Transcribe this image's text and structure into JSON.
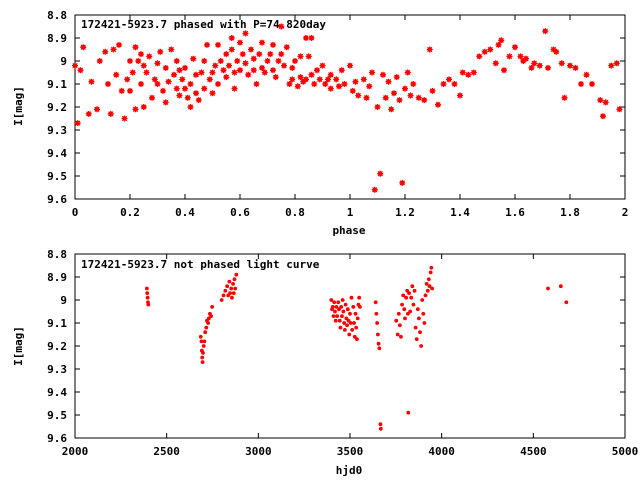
{
  "colors": {
    "points": "#ff0000",
    "frame": "#000000",
    "background": "#ffffff"
  },
  "chart_data": [
    {
      "type": "scatter",
      "title": "172421-5923.7 phased with P=74.820day",
      "xlabel": "phase",
      "ylabel": "I[mag]",
      "xlim": [
        0,
        2
      ],
      "ylim": [
        9.6,
        8.8
      ],
      "y_inverted": true,
      "grid": false,
      "marker": "star",
      "x_ticks": [
        "0",
        "0.2",
        "0.4",
        "0.6",
        "0.8",
        "1",
        "1.2",
        "1.4",
        "1.6",
        "1.8",
        "2"
      ],
      "y_ticks": [
        "8.8",
        "8.9",
        "9",
        "9.1",
        "9.2",
        "9.3",
        "9.4",
        "9.5",
        "9.6"
      ],
      "points": [
        [
          0.0,
          9.02
        ],
        [
          0.01,
          9.27
        ],
        [
          0.02,
          9.04
        ],
        [
          0.03,
          8.94
        ],
        [
          0.05,
          9.23
        ],
        [
          0.06,
          9.09
        ],
        [
          0.08,
          9.21
        ],
        [
          0.09,
          9.0
        ],
        [
          0.11,
          8.96
        ],
        [
          0.12,
          9.1
        ],
        [
          0.13,
          9.23
        ],
        [
          0.14,
          8.95
        ],
        [
          0.15,
          9.06
        ],
        [
          0.16,
          8.93
        ],
        [
          0.17,
          9.13
        ],
        [
          0.18,
          9.25
        ],
        [
          0.19,
          9.08
        ],
        [
          0.2,
          9.0
        ],
        [
          0.2,
          9.13
        ],
        [
          0.21,
          9.05
        ],
        [
          0.22,
          8.94
        ],
        [
          0.22,
          9.21
        ],
        [
          0.23,
          9.0
        ],
        [
          0.24,
          9.1
        ],
        [
          0.24,
          8.97
        ],
        [
          0.25,
          9.02
        ],
        [
          0.25,
          9.2
        ],
        [
          0.26,
          9.05
        ],
        [
          0.27,
          8.98
        ],
        [
          0.28,
          9.16
        ],
        [
          0.29,
          9.08
        ],
        [
          0.3,
          9.01
        ],
        [
          0.3,
          9.1
        ],
        [
          0.31,
          8.96
        ],
        [
          0.32,
          9.13
        ],
        [
          0.33,
          9.03
        ],
        [
          0.33,
          9.18
        ],
        [
          0.34,
          9.09
        ],
        [
          0.35,
          8.95
        ],
        [
          0.36,
          9.06
        ],
        [
          0.37,
          9.12
        ],
        [
          0.37,
          9.0
        ],
        [
          0.38,
          9.04
        ],
        [
          0.38,
          9.15
        ],
        [
          0.39,
          9.08
        ],
        [
          0.4,
          9.12
        ],
        [
          0.4,
          9.03
        ],
        [
          0.41,
          9.16
        ],
        [
          0.42,
          9.1
        ],
        [
          0.42,
          9.2
        ],
        [
          0.43,
          8.99
        ],
        [
          0.44,
          9.06
        ],
        [
          0.44,
          9.14
        ],
        [
          0.45,
          9.17
        ],
        [
          0.46,
          9.05
        ],
        [
          0.47,
          9.12
        ],
        [
          0.47,
          9.0
        ],
        [
          0.48,
          8.93
        ],
        [
          0.49,
          9.08
        ],
        [
          0.5,
          9.14
        ],
        [
          0.5,
          9.05
        ],
        [
          0.51,
          9.02
        ],
        [
          0.52,
          8.93
        ],
        [
          0.52,
          9.1
        ],
        [
          0.53,
          9.0
        ],
        [
          0.54,
          9.04
        ],
        [
          0.55,
          9.07
        ],
        [
          0.55,
          8.97
        ],
        [
          0.56,
          9.02
        ],
        [
          0.57,
          8.9
        ],
        [
          0.57,
          8.95
        ],
        [
          0.58,
          9.05
        ],
        [
          0.58,
          9.12
        ],
        [
          0.59,
          9.0
        ],
        [
          0.6,
          8.92
        ],
        [
          0.6,
          9.04
        ],
        [
          0.61,
          8.97
        ],
        [
          0.62,
          8.88
        ],
        [
          0.62,
          9.01
        ],
        [
          0.63,
          9.06
        ],
        [
          0.64,
          8.95
        ],
        [
          0.65,
          9.04
        ],
        [
          0.65,
          8.99
        ],
        [
          0.66,
          9.1
        ],
        [
          0.67,
          8.97
        ],
        [
          0.68,
          9.03
        ],
        [
          0.68,
          8.92
        ],
        [
          0.69,
          9.05
        ],
        [
          0.7,
          9.0
        ],
        [
          0.71,
          8.97
        ],
        [
          0.72,
          9.04
        ],
        [
          0.72,
          8.93
        ],
        [
          0.73,
          9.07
        ],
        [
          0.74,
          9.0
        ],
        [
          0.75,
          8.85
        ],
        [
          0.75,
          8.97
        ],
        [
          0.76,
          9.02
        ],
        [
          0.77,
          8.94
        ],
        [
          0.78,
          9.1
        ],
        [
          0.79,
          9.03
        ],
        [
          0.79,
          9.08
        ],
        [
          0.8,
          9.0
        ],
        [
          0.81,
          9.11
        ],
        [
          0.82,
          9.07
        ],
        [
          0.82,
          8.98
        ],
        [
          0.83,
          9.09
        ],
        [
          0.84,
          8.9
        ],
        [
          0.84,
          9.08
        ],
        [
          0.85,
          8.98
        ],
        [
          0.86,
          9.06
        ],
        [
          0.86,
          8.9
        ],
        [
          0.87,
          9.1
        ],
        [
          0.88,
          9.04
        ],
        [
          0.89,
          9.08
        ],
        [
          0.9,
          9.02
        ],
        [
          0.91,
          9.1
        ],
        [
          0.92,
          9.08
        ],
        [
          0.93,
          9.12
        ],
        [
          0.93,
          9.06
        ],
        [
          0.95,
          9.08
        ],
        [
          0.96,
          9.11
        ],
        [
          0.97,
          9.04
        ],
        [
          0.98,
          9.1
        ],
        [
          1.0,
          9.02
        ],
        [
          1.01,
          9.13
        ],
        [
          1.02,
          9.09
        ],
        [
          1.03,
          9.15
        ],
        [
          1.05,
          9.08
        ],
        [
          1.06,
          9.16
        ],
        [
          1.07,
          9.11
        ],
        [
          1.08,
          9.05
        ],
        [
          1.09,
          9.56
        ],
        [
          1.1,
          9.2
        ],
        [
          1.11,
          9.49
        ],
        [
          1.12,
          9.06
        ],
        [
          1.13,
          9.16
        ],
        [
          1.14,
          9.09
        ],
        [
          1.15,
          9.21
        ],
        [
          1.16,
          9.14
        ],
        [
          1.17,
          9.07
        ],
        [
          1.18,
          9.17
        ],
        [
          1.19,
          9.53
        ],
        [
          1.2,
          9.12
        ],
        [
          1.21,
          9.05
        ],
        [
          1.22,
          9.15
        ],
        [
          1.23,
          9.1
        ],
        [
          1.25,
          9.16
        ],
        [
          1.27,
          9.17
        ],
        [
          1.29,
          8.95
        ],
        [
          1.3,
          9.13
        ],
        [
          1.32,
          9.19
        ],
        [
          1.34,
          9.1
        ],
        [
          1.36,
          9.08
        ],
        [
          1.38,
          9.1
        ],
        [
          1.4,
          9.15
        ],
        [
          1.41,
          9.05
        ],
        [
          1.43,
          9.06
        ],
        [
          1.45,
          9.05
        ],
        [
          1.47,
          8.98
        ],
        [
          1.49,
          8.96
        ],
        [
          1.51,
          8.95
        ],
        [
          1.53,
          9.01
        ],
        [
          1.54,
          8.93
        ],
        [
          1.55,
          8.91
        ],
        [
          1.56,
          9.04
        ],
        [
          1.58,
          8.98
        ],
        [
          1.6,
          8.94
        ],
        [
          1.62,
          8.98
        ],
        [
          1.63,
          9.0
        ],
        [
          1.64,
          8.99
        ],
        [
          1.66,
          9.03
        ],
        [
          1.67,
          9.01
        ],
        [
          1.69,
          9.02
        ],
        [
          1.71,
          8.87
        ],
        [
          1.72,
          9.03
        ],
        [
          1.74,
          8.95
        ],
        [
          1.75,
          8.96
        ],
        [
          1.77,
          9.01
        ],
        [
          1.78,
          9.16
        ],
        [
          1.8,
          9.02
        ],
        [
          1.82,
          9.03
        ],
        [
          1.84,
          9.1
        ],
        [
          1.86,
          9.06
        ],
        [
          1.88,
          9.1
        ],
        [
          1.91,
          9.17
        ],
        [
          1.92,
          9.24
        ],
        [
          1.93,
          9.18
        ],
        [
          1.95,
          9.02
        ],
        [
          1.97,
          9.01
        ],
        [
          1.98,
          9.21
        ]
      ]
    },
    {
      "type": "scatter",
      "title": "172421-5923.7 not phased light curve",
      "xlabel": "hjd0",
      "ylabel": "I[mag]",
      "xlim": [
        2000,
        5000
      ],
      "ylim": [
        9.6,
        8.8
      ],
      "y_inverted": true,
      "grid": false,
      "marker": "dot",
      "x_ticks": [
        "2000",
        "2500",
        "3000",
        "3500",
        "4000",
        "4500",
        "5000"
      ],
      "y_ticks": [
        "8.8",
        "8.9",
        "9",
        "9.1",
        "9.2",
        "9.3",
        "9.4",
        "9.5",
        "9.6"
      ],
      "points": [
        [
          2392,
          8.95
        ],
        [
          2394,
          8.97
        ],
        [
          2396,
          8.99
        ],
        [
          2398,
          9.01
        ],
        [
          2400,
          9.02
        ],
        [
          2686,
          9.16
        ],
        [
          2690,
          9.18
        ],
        [
          2692,
          9.22
        ],
        [
          2694,
          9.25
        ],
        [
          2696,
          9.27
        ],
        [
          2698,
          9.23
        ],
        [
          2702,
          9.2
        ],
        [
          2706,
          9.18
        ],
        [
          2710,
          9.14
        ],
        [
          2716,
          9.12
        ],
        [
          2720,
          9.09
        ],
        [
          2726,
          9.1
        ],
        [
          2730,
          9.08
        ],
        [
          2736,
          9.06
        ],
        [
          2742,
          9.07
        ],
        [
          2748,
          9.03
        ],
        [
          2800,
          9.0
        ],
        [
          2810,
          8.98
        ],
        [
          2820,
          8.96
        ],
        [
          2830,
          8.94
        ],
        [
          2836,
          8.98
        ],
        [
          2842,
          8.92
        ],
        [
          2846,
          8.97
        ],
        [
          2852,
          8.95
        ],
        [
          2856,
          8.99
        ],
        [
          2862,
          8.93
        ],
        [
          2866,
          8.97
        ],
        [
          2870,
          8.91
        ],
        [
          2874,
          8.95
        ],
        [
          2880,
          8.89
        ],
        [
          3398,
          9.0
        ],
        [
          3402,
          9.04
        ],
        [
          3406,
          9.03
        ],
        [
          3410,
          9.07
        ],
        [
          3414,
          9.01
        ],
        [
          3418,
          9.05
        ],
        [
          3422,
          9.09
        ],
        [
          3426,
          9.03
        ],
        [
          3430,
          9.07
        ],
        [
          3436,
          9.01
        ],
        [
          3440,
          9.04
        ],
        [
          3444,
          9.09
        ],
        [
          3448,
          9.12
        ],
        [
          3452,
          9.03
        ],
        [
          3456,
          9.07
        ],
        [
          3460,
          9.0
        ],
        [
          3464,
          9.05
        ],
        [
          3468,
          9.1
        ],
        [
          3472,
          9.13
        ],
        [
          3476,
          9.02
        ],
        [
          3480,
          9.08
        ],
        [
          3484,
          9.11
        ],
        [
          3488,
          9.04
        ],
        [
          3492,
          9.09
        ],
        [
          3496,
          9.15
        ],
        [
          3500,
          9.06
        ],
        [
          3504,
          9.1
        ],
        [
          3508,
          8.99
        ],
        [
          3512,
          9.13
        ],
        [
          3518,
          9.03
        ],
        [
          3522,
          9.1
        ],
        [
          3526,
          9.16
        ],
        [
          3530,
          9.06
        ],
        [
          3534,
          9.12
        ],
        [
          3538,
          9.17
        ],
        [
          3542,
          9.08
        ],
        [
          3546,
          9.02
        ],
        [
          3550,
          8.99
        ],
        [
          3554,
          9.03
        ],
        [
          3640,
          9.01
        ],
        [
          3644,
          9.06
        ],
        [
          3648,
          9.1
        ],
        [
          3652,
          9.15
        ],
        [
          3656,
          9.19
        ],
        [
          3660,
          9.21
        ],
        [
          3666,
          9.54
        ],
        [
          3668,
          9.56
        ],
        [
          3752,
          9.09
        ],
        [
          3760,
          9.15
        ],
        [
          3766,
          9.06
        ],
        [
          3772,
          9.11
        ],
        [
          3778,
          9.16
        ],
        [
          3784,
          9.02
        ],
        [
          3790,
          8.98
        ],
        [
          3796,
          9.04
        ],
        [
          3800,
          9.08
        ],
        [
          3806,
          8.99
        ],
        [
          3812,
          8.96
        ],
        [
          3816,
          9.06
        ],
        [
          3818,
          9.49
        ],
        [
          3822,
          8.97
        ],
        [
          3828,
          9.05
        ],
        [
          3834,
          8.99
        ],
        [
          3840,
          8.94
        ],
        [
          3846,
          9.02
        ],
        [
          3852,
          8.96
        ],
        [
          3858,
          9.12
        ],
        [
          3864,
          9.17
        ],
        [
          3870,
          9.04
        ],
        [
          3876,
          9.08
        ],
        [
          3882,
          9.14
        ],
        [
          3888,
          9.2
        ],
        [
          3894,
          9.0
        ],
        [
          3900,
          9.06
        ],
        [
          3906,
          9.1
        ],
        [
          3912,
          8.98
        ],
        [
          3918,
          8.93
        ],
        [
          3924,
          8.96
        ],
        [
          3930,
          8.91
        ],
        [
          3934,
          8.94
        ],
        [
          3940,
          8.88
        ],
        [
          3944,
          8.86
        ],
        [
          3948,
          8.95
        ],
        [
          4580,
          8.95
        ],
        [
          4650,
          8.94
        ],
        [
          4680,
          9.01
        ]
      ]
    }
  ]
}
